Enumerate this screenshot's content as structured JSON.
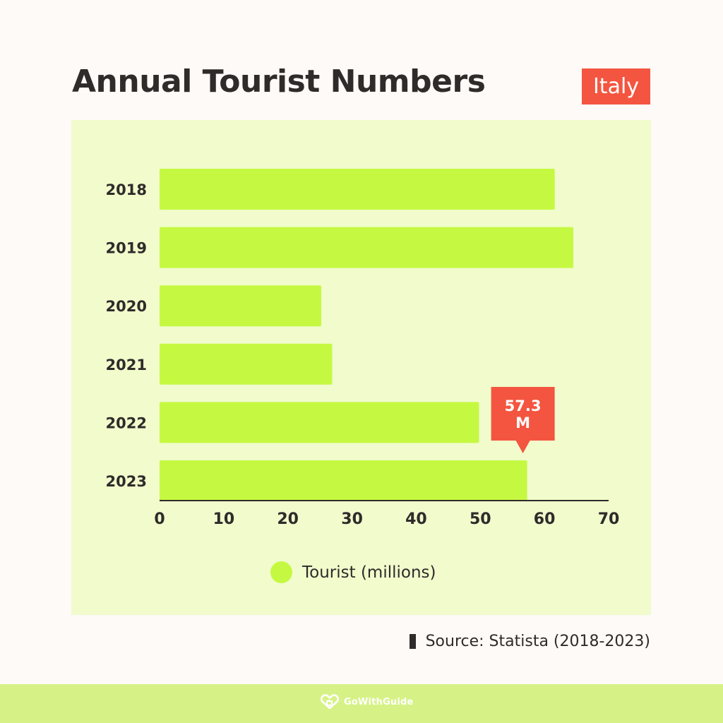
{
  "header": {
    "title": "Annual Tourist Numbers",
    "country_tag": "Italy"
  },
  "chart_data": {
    "type": "bar",
    "orientation": "horizontal",
    "categories": [
      "2018",
      "2019",
      "2020",
      "2021",
      "2022",
      "2023"
    ],
    "series": [
      {
        "name": "Tourist (millions)",
        "values": [
          61.6,
          64.5,
          25.2,
          26.9,
          49.8,
          57.3
        ]
      }
    ],
    "xlim": [
      0,
      70
    ],
    "xticks": [
      "0",
      "10",
      "20",
      "30",
      "40",
      "50",
      "60",
      "70"
    ],
    "grid": false,
    "legend_position": "bottom-center",
    "annotation": {
      "category": "2023",
      "line1": "57.3",
      "line2": "M"
    }
  },
  "source": {
    "text": "Source: Statista (2018-2023)"
  },
  "footer": {
    "brand": "GoWithGuide"
  },
  "colors": {
    "background": "#fdfaf7",
    "panel": "#f1fbcc",
    "bar": "#c5f941",
    "accent": "#f45540",
    "text": "#2f2b2a",
    "footer": "#d6f286"
  }
}
